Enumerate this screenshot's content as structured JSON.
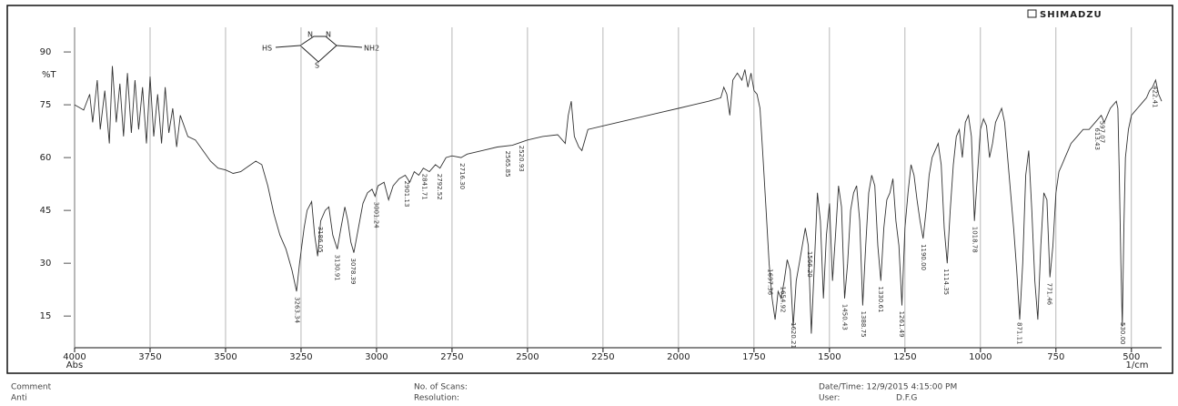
{
  "chart_data": {
    "type": "line",
    "brand": "SHIMADZU",
    "y_label": "%T",
    "x_label_left": "Abs",
    "x_label_right": "1/cm",
    "color": "#333333",
    "grid": true,
    "xlim": [
      4000,
      400
    ],
    "ylim": [
      6,
      97
    ],
    "xticks": [
      4000,
      3750,
      3500,
      3250,
      3000,
      2750,
      2500,
      2250,
      2000,
      1750,
      1500,
      1250,
      1000,
      750,
      500
    ],
    "yticks": [
      15,
      30,
      45,
      60,
      75,
      90
    ],
    "x": [
      4000,
      3970,
      3950,
      3940,
      3925,
      3915,
      3900,
      3885,
      3875,
      3862,
      3850,
      3838,
      3825,
      3812,
      3800,
      3788,
      3775,
      3762,
      3750,
      3738,
      3725,
      3712,
      3700,
      3688,
      3675,
      3662,
      3650,
      3625,
      3600,
      3575,
      3550,
      3525,
      3500,
      3475,
      3450,
      3425,
      3400,
      3380,
      3360,
      3340,
      3320,
      3300,
      3280,
      3265,
      3255,
      3240,
      3230,
      3215,
      3205,
      3195,
      3185,
      3170,
      3158,
      3145,
      3130,
      3118,
      3105,
      3095,
      3085,
      3075,
      3060,
      3045,
      3030,
      3015,
      3005,
      2995,
      2975,
      2960,
      2945,
      2925,
      2905,
      2890,
      2875,
      2860,
      2845,
      2825,
      2805,
      2790,
      2770,
      2750,
      2720,
      2700,
      2650,
      2600,
      2550,
      2500,
      2450,
      2400,
      2375,
      2365,
      2355,
      2345,
      2330,
      2320,
      2300,
      2250,
      2200,
      2150,
      2100,
      2050,
      2000,
      1950,
      1900,
      1860,
      1850,
      1840,
      1830,
      1820,
      1805,
      1790,
      1780,
      1770,
      1760,
      1750,
      1740,
      1730,
      1720,
      1710,
      1700,
      1690,
      1680,
      1670,
      1660,
      1650,
      1640,
      1630,
      1620,
      1610,
      1600,
      1590,
      1580,
      1570,
      1560,
      1550,
      1540,
      1530,
      1520,
      1510,
      1500,
      1490,
      1480,
      1470,
      1460,
      1450,
      1440,
      1430,
      1420,
      1410,
      1400,
      1390,
      1380,
      1370,
      1360,
      1350,
      1340,
      1330,
      1320,
      1310,
      1300,
      1290,
      1280,
      1270,
      1260,
      1250,
      1240,
      1230,
      1220,
      1210,
      1200,
      1190,
      1180,
      1170,
      1160,
      1150,
      1140,
      1130,
      1120,
      1110,
      1100,
      1090,
      1080,
      1070,
      1060,
      1050,
      1040,
      1030,
      1020,
      1010,
      1000,
      990,
      980,
      970,
      960,
      950,
      940,
      930,
      920,
      910,
      900,
      890,
      880,
      870,
      860,
      850,
      840,
      830,
      820,
      810,
      800,
      790,
      780,
      770,
      760,
      750,
      740,
      730,
      720,
      710,
      700,
      680,
      660,
      640,
      620,
      600,
      590,
      580,
      570,
      560,
      550,
      545,
      540,
      535,
      530,
      525,
      520,
      510,
      500,
      490,
      480,
      470,
      460,
      450,
      440,
      430,
      420,
      410,
      400
    ],
    "values": [
      75,
      73.5,
      78,
      70,
      82,
      68,
      79,
      64,
      86,
      70,
      81,
      66,
      84,
      67,
      82,
      68,
      80,
      64,
      83,
      66,
      78,
      64,
      80,
      67,
      74,
      63,
      72,
      66,
      65,
      62,
      59,
      57,
      56.5,
      55.5,
      56,
      57.5,
      59,
      58,
      52,
      44,
      38,
      34,
      28,
      22,
      30,
      40,
      45,
      47.5,
      38,
      32,
      42,
      45,
      46,
      38,
      34,
      40,
      46,
      42,
      36,
      33,
      40,
      47,
      50,
      51,
      49,
      52,
      53,
      48,
      52,
      54,
      55,
      53,
      56,
      55,
      57,
      56,
      58,
      57,
      60,
      60.5,
      60,
      61,
      62,
      63,
      63.5,
      65,
      66,
      66.5,
      64,
      72,
      76,
      66,
      63,
      62,
      68,
      69,
      70,
      71,
      72,
      73,
      74,
      75,
      76,
      77,
      80,
      78,
      72,
      82,
      84,
      82,
      85,
      80,
      84,
      79,
      78,
      74,
      60,
      45,
      30,
      20,
      14,
      22,
      20,
      25,
      31,
      28,
      12,
      25,
      30,
      35,
      40,
      35,
      10,
      30,
      50,
      42,
      20,
      38,
      47,
      25,
      38,
      52,
      46,
      20,
      30,
      45,
      50,
      52,
      42,
      18,
      35,
      50,
      55,
      52,
      35,
      25,
      40,
      48,
      50,
      54,
      42,
      35,
      18,
      40,
      50,
      58,
      55,
      48,
      42,
      37,
      45,
      55,
      60,
      62,
      64,
      58,
      40,
      30,
      45,
      58,
      66,
      68,
      60,
      70,
      72,
      66,
      42,
      55,
      68,
      71,
      69,
      60,
      64,
      70,
      72,
      74,
      70,
      60,
      50,
      40,
      28,
      14,
      30,
      55,
      62,
      45,
      25,
      14,
      35,
      50,
      48,
      26,
      35,
      50,
      56,
      58,
      60,
      62,
      64,
      66,
      68,
      68,
      70,
      72,
      70,
      72,
      74,
      75,
      76,
      74,
      55,
      30,
      12,
      40,
      60,
      68,
      72,
      73,
      74,
      75,
      76,
      77,
      79,
      80,
      82,
      78,
      76
    ],
    "peaks": [
      {
        "label": "3263.34",
        "x": 3263.34
      },
      {
        "label": "3186.05",
        "x": 3186.05
      },
      {
        "label": "3130.91",
        "x": 3130.91
      },
      {
        "label": "3078.39",
        "x": 3078.39
      },
      {
        "label": "3001.24",
        "x": 3001.24
      },
      {
        "label": "2901.13",
        "x": 2901.13
      },
      {
        "label": "2841.71",
        "x": 2841.71
      },
      {
        "label": "2792.52",
        "x": 2792.52
      },
      {
        "label": "2716.30",
        "x": 2716.3
      },
      {
        "label": "2565.85",
        "x": 2565.85
      },
      {
        "label": "2520.93",
        "x": 2520.93
      },
      {
        "label": "1697.36",
        "x": 1697.36
      },
      {
        "label": "1654.92",
        "x": 1654.92
      },
      {
        "label": "1620.21",
        "x": 1620.21
      },
      {
        "label": "1566.20",
        "x": 1566.2
      },
      {
        "label": "1450.43",
        "x": 1450.43
      },
      {
        "label": "1388.75",
        "x": 1388.75
      },
      {
        "label": "1330.61",
        "x": 1330.61
      },
      {
        "label": "1261.49",
        "x": 1261.49
      },
      {
        "label": "1190.00",
        "x": 1190.0
      },
      {
        "label": "1114.35",
        "x": 1114.35
      },
      {
        "label": "1018.78",
        "x": 1018.78
      },
      {
        "label": "871.11",
        "x": 871.11
      },
      {
        "label": "771.46",
        "x": 771.46
      },
      {
        "label": "613.43",
        "x": 613.43
      },
      {
        "label": "597.07",
        "x": 597.07
      },
      {
        "label": "530.00",
        "x": 530.0
      },
      {
        "label": "422.41",
        "x": 422.41
      }
    ],
    "structure": {
      "left": "HS",
      "ring_s": "S",
      "ring_n1": "N",
      "ring_n2": "N",
      "right": "NH2"
    },
    "footer": {
      "comment": "Comment",
      "sample": "Anti",
      "scans": "No. of Scans:",
      "resolution": "Resolution:",
      "datetime": "Date/Time: 12/9/2015 4:15:00 PM",
      "user_label": "User:",
      "user": "D.F.G"
    }
  }
}
